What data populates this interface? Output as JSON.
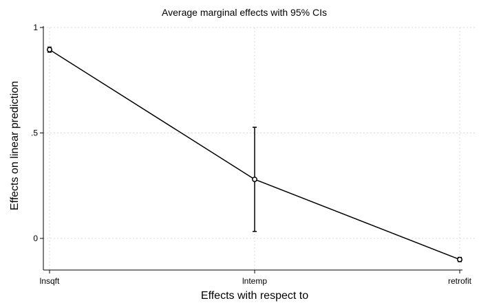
{
  "chart_data": {
    "type": "line",
    "title": "Average marginal effects with 95% CIs",
    "xlabel": "Effects with respect to",
    "ylabel": "Effects on linear prediction",
    "categories": [
      "lnsqft",
      "lntemp",
      "retrofit"
    ],
    "ylim": [
      -0.15,
      1.0
    ],
    "yticks": [
      0,
      0.5,
      1
    ],
    "ytick_labels": [
      "0",
      ".5",
      "1"
    ],
    "grid": true,
    "series": [
      {
        "values": [
          0.895,
          0.28,
          -0.1
        ],
        "ci_lower": [
          0.883,
          0.033,
          -0.11
        ],
        "ci_upper": [
          0.907,
          0.527,
          -0.09
        ]
      }
    ],
    "colors": {
      "line": "#000000",
      "grid": "#d9d9d9",
      "background": "#ffffff"
    }
  }
}
